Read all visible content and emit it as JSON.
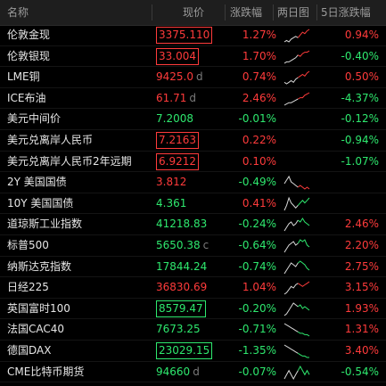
{
  "header": {
    "name": "名称",
    "price": "现价",
    "change": "涨跌幅",
    "two_day_chart": "两日图",
    "five_day_change": "5日涨跌幅"
  },
  "colors": {
    "up": "#ff3b3b",
    "down": "#2ee86e",
    "neutral": "#e6e6e6"
  },
  "rows": [
    {
      "name": "伦敦金现",
      "price": "3375.110",
      "suffix": "",
      "change": "1.27%",
      "change5": "0.94%",
      "dir": "up",
      "dir5": "up",
      "boxed": true,
      "chart": [
        5,
        6,
        5,
        7,
        8,
        9,
        8,
        10,
        12,
        11,
        13,
        14
      ]
    },
    {
      "name": "伦敦银现",
      "price": "33.004",
      "suffix": "",
      "change": "1.70%",
      "change5": "-0.40%",
      "dir": "up",
      "dir5": "down",
      "boxed": true,
      "chart": [
        4,
        5,
        5,
        6,
        7,
        8,
        10,
        9,
        11,
        12,
        12,
        13
      ]
    },
    {
      "name": "LME铜",
      "price": "9425.0",
      "suffix": "d",
      "change": "0.74%",
      "change5": "0.50%",
      "dir": "up",
      "dir5": "up",
      "boxed": false,
      "chart": [
        6,
        5,
        6,
        7,
        6,
        8,
        9,
        10,
        11,
        10,
        12,
        13
      ]
    },
    {
      "name": "ICE布油",
      "price": "61.71",
      "suffix": "d",
      "change": "2.46%",
      "change5": "-4.37%",
      "dir": "up",
      "dir5": "down",
      "boxed": false,
      "chart": [
        4,
        5,
        6,
        6,
        7,
        8,
        9,
        10,
        10,
        12,
        13,
        14
      ]
    },
    {
      "name": "美元中间价",
      "price": "7.2008",
      "suffix": "",
      "change": "-0.01%",
      "change5": "-0.12%",
      "dir": "down",
      "dir5": "down",
      "boxed": false,
      "chart": []
    },
    {
      "name": "美元兑离岸人民币",
      "price": "7.2163",
      "suffix": "",
      "change": "0.22%",
      "change5": "-0.94%",
      "dir": "up",
      "dir5": "down",
      "boxed": true,
      "chart": []
    },
    {
      "name": "美元兑离岸人民币2年远期",
      "price": "6.9212",
      "suffix": "",
      "change": "0.10%",
      "change5": "-1.07%",
      "dir": "up",
      "dir5": "down",
      "boxed": true,
      "chart": []
    },
    {
      "name": "2Y 美国国债",
      "price": "3.812",
      "suffix": "",
      "change": "-0.49%",
      "change5": "",
      "dir": "up",
      "dir5": "up",
      "dir_change": "down",
      "boxed": false,
      "chart": [
        8,
        10,
        12,
        9,
        8,
        7,
        6,
        7,
        6,
        5,
        6,
        5
      ]
    },
    {
      "name": "10Y 美国国债",
      "price": "4.361",
      "suffix": "",
      "change": "0.41%",
      "change5": "",
      "dir": "down",
      "dir5": "up",
      "dir_change": "up",
      "boxed": false,
      "chart": [
        6,
        8,
        11,
        9,
        8,
        7,
        8,
        9,
        10,
        9,
        10,
        11
      ]
    },
    {
      "name": "道琼斯工业指数",
      "price": "41218.83",
      "suffix": "",
      "change": "-0.24%",
      "change5": "2.46%",
      "dir": "down",
      "dir5": "up",
      "boxed": false,
      "chart": [
        6,
        8,
        10,
        11,
        9,
        10,
        12,
        11,
        13,
        11,
        10,
        9
      ]
    },
    {
      "name": "标普500",
      "price": "5650.38",
      "suffix": "c",
      "change": "-0.64%",
      "change5": "2.20%",
      "dir": "down",
      "dir5": "up",
      "boxed": false,
      "chart": [
        5,
        7,
        9,
        10,
        11,
        9,
        10,
        12,
        11,
        12,
        9,
        8
      ]
    },
    {
      "name": "纳斯达克指数",
      "price": "17844.24",
      "suffix": "",
      "change": "-0.74%",
      "change5": "2.75%",
      "dir": "down",
      "dir5": "up",
      "boxed": false,
      "chart": [
        5,
        7,
        9,
        11,
        10,
        9,
        11,
        12,
        11,
        10,
        8,
        7
      ]
    },
    {
      "name": "日经225",
      "price": "36830.69",
      "suffix": "",
      "change": "1.04%",
      "change5": "3.15%",
      "dir": "up",
      "dir5": "up",
      "boxed": false,
      "chart": [
        5,
        6,
        8,
        10,
        9,
        11,
        12,
        11,
        10,
        11,
        12,
        13
      ]
    },
    {
      "name": "英国富时100",
      "price": "8579.47",
      "suffix": "",
      "change": "-0.20%",
      "change5": "1.93%",
      "dir": "down",
      "dir5": "up",
      "boxed": true,
      "chart": [
        5,
        6,
        8,
        10,
        12,
        11,
        10,
        11,
        9,
        10,
        9,
        8
      ]
    },
    {
      "name": "法国CAC40",
      "price": "7673.25",
      "suffix": "",
      "change": "-0.71%",
      "change5": "1.31%",
      "dir": "down",
      "dir5": "up",
      "boxed": false,
      "chart": [
        12,
        11,
        10,
        9,
        8,
        7,
        6,
        5,
        5,
        4,
        4,
        3
      ]
    },
    {
      "name": "德国DAX",
      "price": "23029.15",
      "suffix": "",
      "change": "-1.35%",
      "change5": "3.40%",
      "dir": "down",
      "dir5": "up",
      "boxed": true,
      "chart": [
        12,
        11,
        10,
        9,
        8,
        7,
        6,
        5,
        4,
        4,
        3,
        3
      ]
    },
    {
      "name": "CME比特币期货",
      "price": "94660",
      "suffix": "d",
      "change": "-0.07%",
      "change5": "-0.54%",
      "dir": "down",
      "dir5": "down",
      "boxed": false,
      "chart": [
        8,
        9,
        10,
        9,
        8,
        9,
        10,
        11,
        10,
        9,
        10,
        9
      ]
    }
  ]
}
